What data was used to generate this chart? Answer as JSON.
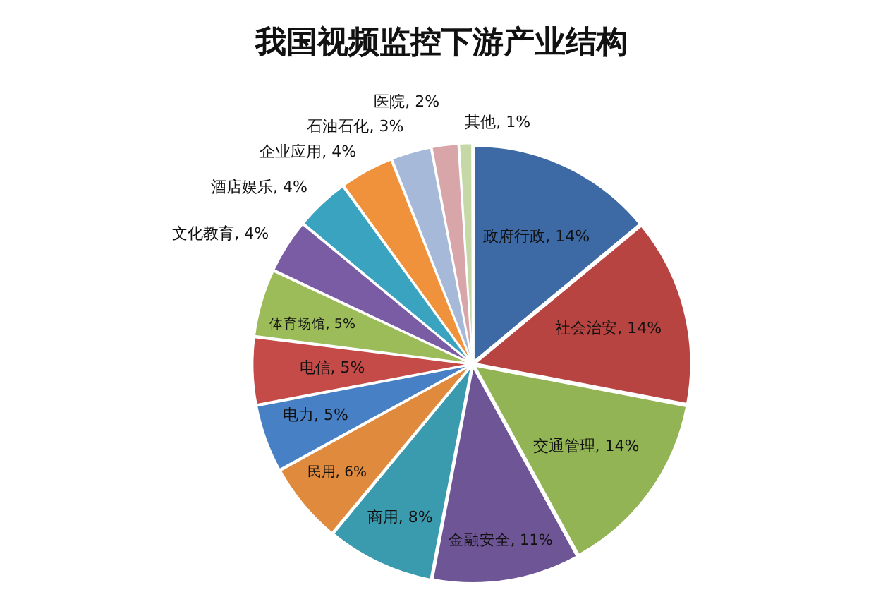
{
  "chart_data": {
    "type": "pie",
    "title": "我国视频监控下游产业结构",
    "categories": [
      "政府行政",
      "社会治安",
      "交通管理",
      "金融安全",
      "商用",
      "民用",
      "电力",
      "电信",
      "体育场馆",
      "文化教育",
      "酒店娱乐",
      "企业应用",
      "石油石化",
      "医院",
      "其他"
    ],
    "values": [
      14,
      14,
      14,
      11,
      8,
      6,
      5,
      5,
      5,
      4,
      4,
      4,
      3,
      2,
      1
    ],
    "value_labels": [
      "14%",
      "14%",
      "14%",
      "11%",
      "8%",
      "6%",
      "5%",
      "5%",
      "5%",
      "4%",
      "4%",
      "4%",
      "3%",
      "2%",
      "1%"
    ],
    "colors": [
      "#3d6aa5",
      "#b84441",
      "#93b455",
      "#6e5596",
      "#3a9bae",
      "#e08a3e",
      "#4780c4",
      "#c44b48",
      "#9cbc5a",
      "#7a5ca5",
      "#3aa4c0",
      "#f0923c",
      "#a7b9d9",
      "#d8a6a8",
      "#c5d8a5"
    ]
  }
}
